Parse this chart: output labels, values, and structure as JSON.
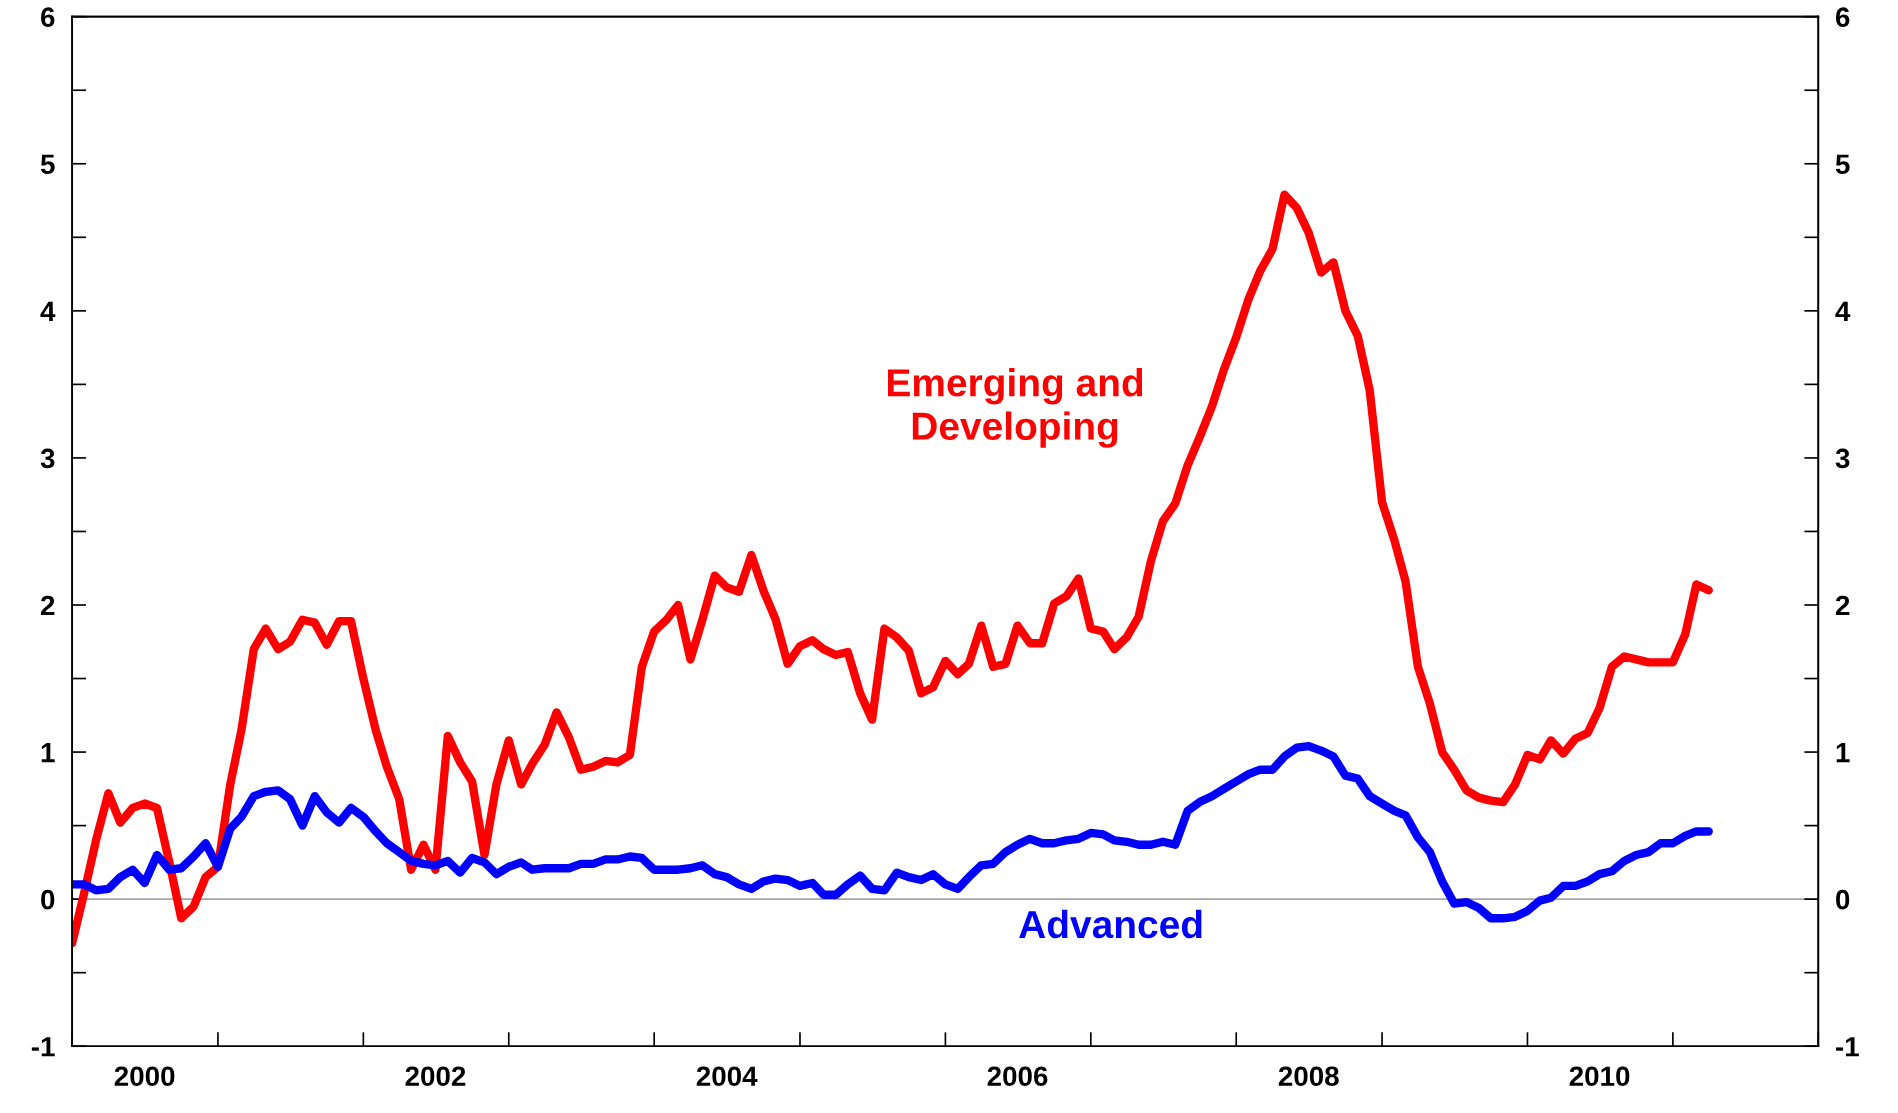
{
  "chart_data": {
    "type": "line",
    "x": [
      "2000-01",
      "2000-02",
      "2000-03",
      "2000-04",
      "2000-05",
      "2000-06",
      "2000-07",
      "2000-08",
      "2000-09",
      "2000-10",
      "2000-11",
      "2000-12",
      "2001-01",
      "2001-02",
      "2001-03",
      "2001-04",
      "2001-05",
      "2001-06",
      "2001-07",
      "2001-08",
      "2001-09",
      "2001-10",
      "2001-11",
      "2001-12",
      "2002-01",
      "2002-02",
      "2002-03",
      "2002-04",
      "2002-05",
      "2002-06",
      "2002-07",
      "2002-08",
      "2002-09",
      "2002-10",
      "2002-11",
      "2002-12",
      "2003-01",
      "2003-02",
      "2003-03",
      "2003-04",
      "2003-05",
      "2003-06",
      "2003-07",
      "2003-08",
      "2003-09",
      "2003-10",
      "2003-11",
      "2003-12",
      "2004-01",
      "2004-02",
      "2004-03",
      "2004-04",
      "2004-05",
      "2004-06",
      "2004-07",
      "2004-08",
      "2004-09",
      "2004-10",
      "2004-11",
      "2004-12",
      "2005-01",
      "2005-02",
      "2005-03",
      "2005-04",
      "2005-05",
      "2005-06",
      "2005-07",
      "2005-08",
      "2005-09",
      "2005-10",
      "2005-11",
      "2005-12",
      "2006-01",
      "2006-02",
      "2006-03",
      "2006-04",
      "2006-05",
      "2006-06",
      "2006-07",
      "2006-08",
      "2006-09",
      "2006-10",
      "2006-11",
      "2006-12",
      "2007-01",
      "2007-02",
      "2007-03",
      "2007-04",
      "2007-05",
      "2007-06",
      "2007-07",
      "2007-08",
      "2007-09",
      "2007-10",
      "2007-11",
      "2007-12",
      "2008-01",
      "2008-02",
      "2008-03",
      "2008-04",
      "2008-05",
      "2008-06",
      "2008-07",
      "2008-08",
      "2008-09",
      "2008-10",
      "2008-11",
      "2008-12",
      "2009-01",
      "2009-02",
      "2009-03",
      "2009-04",
      "2009-05",
      "2009-06",
      "2009-07",
      "2009-08",
      "2009-09",
      "2009-10",
      "2009-11",
      "2009-12",
      "2010-01",
      "2010-02",
      "2010-03",
      "2010-04",
      "2010-05",
      "2010-06",
      "2010-07",
      "2010-08",
      "2010-09",
      "2010-10",
      "2010-11",
      "2010-12",
      "2011-01",
      "2011-02",
      "2011-03",
      "2011-04"
    ],
    "series": [
      {
        "name": "Emerging and\nDeveloping",
        "color": "#ff0000",
        "values": [
          -0.3,
          0.05,
          0.4,
          0.72,
          0.52,
          0.62,
          0.65,
          0.62,
          0.25,
          -0.13,
          -0.05,
          0.15,
          0.22,
          0.78,
          1.15,
          1.7,
          1.84,
          1.7,
          1.75,
          1.9,
          1.88,
          1.73,
          1.89,
          1.89,
          1.5,
          1.15,
          0.9,
          0.68,
          0.2,
          0.37,
          0.2,
          1.11,
          0.93,
          0.8,
          0.3,
          0.78,
          1.08,
          0.78,
          0.92,
          1.05,
          1.27,
          1.1,
          0.88,
          0.9,
          0.94,
          0.93,
          0.98,
          1.58,
          1.82,
          1.9,
          2.0,
          1.63,
          1.9,
          2.2,
          2.12,
          2.09,
          2.34,
          2.1,
          1.9,
          1.6,
          1.72,
          1.76,
          1.7,
          1.66,
          1.68,
          1.4,
          1.22,
          1.84,
          1.78,
          1.69,
          1.4,
          1.44,
          1.62,
          1.53,
          1.6,
          1.86,
          1.58,
          1.6,
          1.86,
          1.74,
          1.74,
          2.01,
          2.06,
          2.18,
          1.84,
          1.82,
          1.7,
          1.78,
          1.92,
          2.3,
          2.57,
          2.69,
          2.95,
          3.14,
          3.35,
          3.6,
          3.82,
          4.08,
          4.27,
          4.42,
          4.79,
          4.7,
          4.53,
          4.26,
          4.33,
          4.0,
          3.83,
          3.46,
          2.7,
          2.44,
          2.16,
          1.58,
          1.33,
          1.0,
          0.88,
          0.74,
          0.69,
          0.67,
          0.66,
          0.78,
          0.98,
          0.95,
          1.08,
          0.99,
          1.09,
          1.13,
          1.3,
          1.58,
          1.65,
          1.63,
          1.61,
          1.61,
          1.61,
          1.8,
          2.14,
          2.1
        ]
      },
      {
        "name": "Advanced",
        "color": "#0000ff",
        "values": [
          0.1,
          0.1,
          0.06,
          0.07,
          0.15,
          0.2,
          0.11,
          0.3,
          0.2,
          0.21,
          0.29,
          0.38,
          0.22,
          0.48,
          0.56,
          0.7,
          0.73,
          0.74,
          0.68,
          0.5,
          0.7,
          0.59,
          0.52,
          0.62,
          0.56,
          0.46,
          0.38,
          0.32,
          0.26,
          0.24,
          0.23,
          0.26,
          0.18,
          0.28,
          0.25,
          0.17,
          0.22,
          0.25,
          0.2,
          0.21,
          0.21,
          0.21,
          0.24,
          0.24,
          0.27,
          0.27,
          0.29,
          0.28,
          0.2,
          0.2,
          0.2,
          0.21,
          0.23,
          0.17,
          0.15,
          0.1,
          0.07,
          0.12,
          0.14,
          0.13,
          0.09,
          0.11,
          0.03,
          0.03,
          0.1,
          0.16,
          0.07,
          0.06,
          0.18,
          0.15,
          0.13,
          0.17,
          0.1,
          0.07,
          0.15,
          0.23,
          0.24,
          0.32,
          0.37,
          0.41,
          0.38,
          0.38,
          0.4,
          0.41,
          0.45,
          0.44,
          0.4,
          0.39,
          0.37,
          0.37,
          0.39,
          0.37,
          0.6,
          0.66,
          0.7,
          0.75,
          0.8,
          0.85,
          0.88,
          0.88,
          0.97,
          1.03,
          1.04,
          1.01,
          0.97,
          0.84,
          0.82,
          0.7,
          0.65,
          0.6,
          0.57,
          0.42,
          0.32,
          0.12,
          -0.03,
          -0.02,
          -0.06,
          -0.13,
          -0.13,
          -0.12,
          -0.08,
          -0.01,
          0.01,
          0.09,
          0.09,
          0.12,
          0.17,
          0.19,
          0.26,
          0.3,
          0.32,
          0.38,
          0.38,
          0.43,
          0.46,
          0.46
        ]
      }
    ],
    "xlim": [
      "2000-01",
      "2012-01"
    ],
    "xticks": [
      {
        "value": "2000-01",
        "label": null
      },
      {
        "value": "2000-07",
        "label": "2000"
      },
      {
        "value": "2001-01",
        "label": null
      },
      {
        "value": "2002-01",
        "label": null
      },
      {
        "value": "2002-07",
        "label": "2002"
      },
      {
        "value": "2003-01",
        "label": null
      },
      {
        "value": "2004-01",
        "label": null
      },
      {
        "value": "2004-07",
        "label": "2004"
      },
      {
        "value": "2005-01",
        "label": null
      },
      {
        "value": "2006-01",
        "label": null
      },
      {
        "value": "2006-07",
        "label": "2006"
      },
      {
        "value": "2007-01",
        "label": null
      },
      {
        "value": "2008-01",
        "label": null
      },
      {
        "value": "2008-07",
        "label": "2008"
      },
      {
        "value": "2009-01",
        "label": null
      },
      {
        "value": "2010-01",
        "label": null
      },
      {
        "value": "2010-07",
        "label": "2010"
      },
      {
        "value": "2011-01",
        "label": null
      },
      {
        "value": "2012-01",
        "label": null
      }
    ],
    "ylim": [
      -1,
      6
    ],
    "yticks": [
      -1,
      {
        "value": -0.5,
        "label": null
      },
      0,
      {
        "value": 0.5,
        "label": null
      },
      1,
      {
        "value": 1.5,
        "label": null
      },
      2,
      {
        "value": 2.5,
        "label": null
      },
      3,
      {
        "value": 3.5,
        "label": null
      },
      4,
      {
        "value": 4.5,
        "label": null
      },
      5,
      {
        "value": 5.5,
        "label": null
      },
      6
    ],
    "y2lim": [
      -1,
      6
    ],
    "y2ticks": [
      -1,
      {
        "value": -0.5,
        "label": null
      },
      0,
      {
        "value": 0.5,
        "label": null
      },
      1,
      {
        "value": 1.5,
        "label": null
      },
      2,
      {
        "value": 2.5,
        "label": null
      },
      3,
      {
        "value": 3.5,
        "label": null
      },
      4,
      {
        "value": 4.5,
        "label": null
      },
      5,
      {
        "value": 5.5,
        "label": null
      },
      6
    ],
    "ref_lines": [
      {
        "axis": "y",
        "value": 0,
        "color": "#a6a6a6"
      }
    ],
    "line_style": "solid",
    "marker": "none",
    "grid": false,
    "legend": false
  }
}
